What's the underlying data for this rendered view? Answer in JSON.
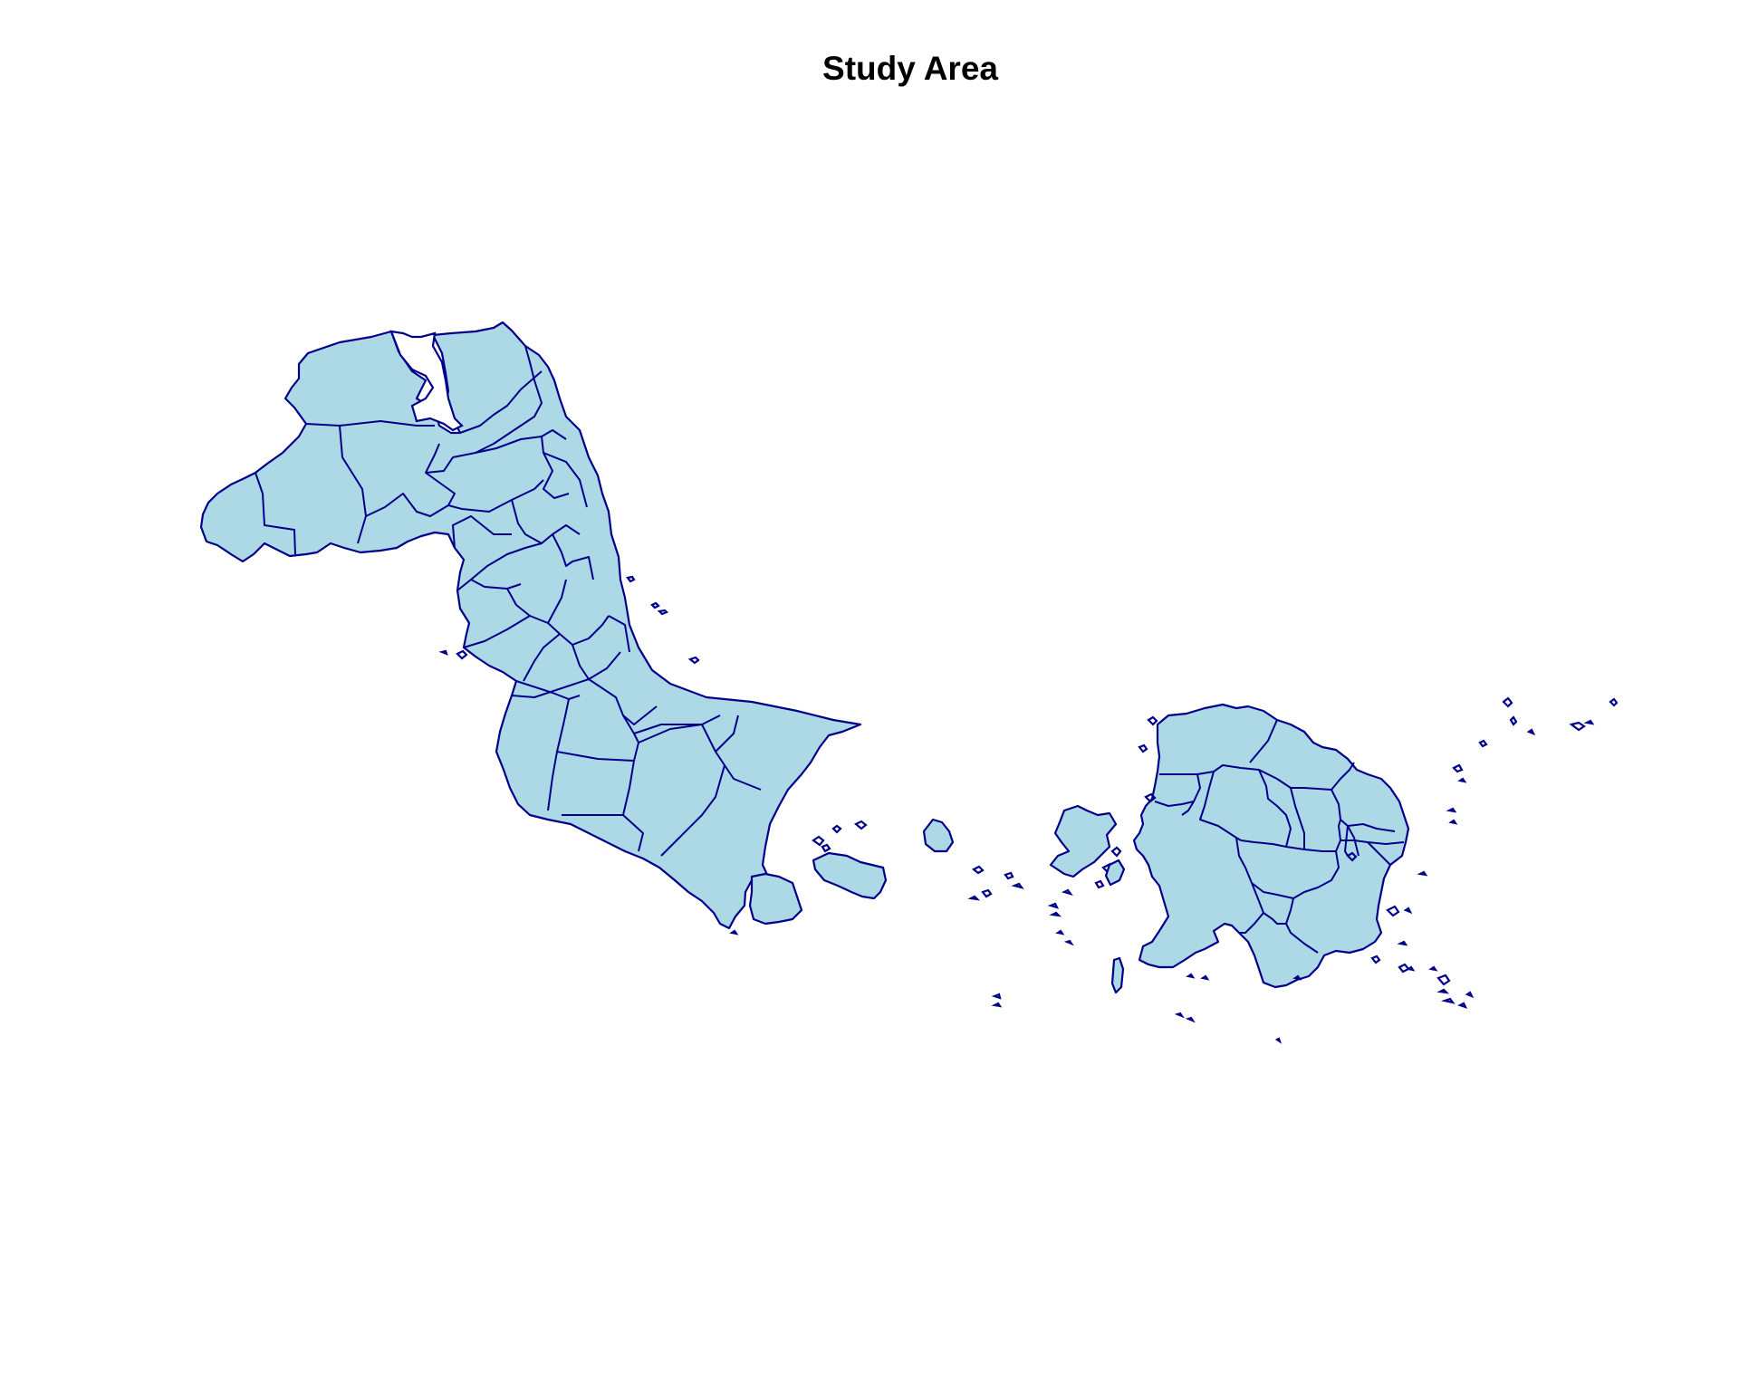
{
  "map": {
    "title": "Study Area",
    "fill_color": "#add8e6",
    "border_color": "#00008b",
    "background": "#ffffff"
  }
}
